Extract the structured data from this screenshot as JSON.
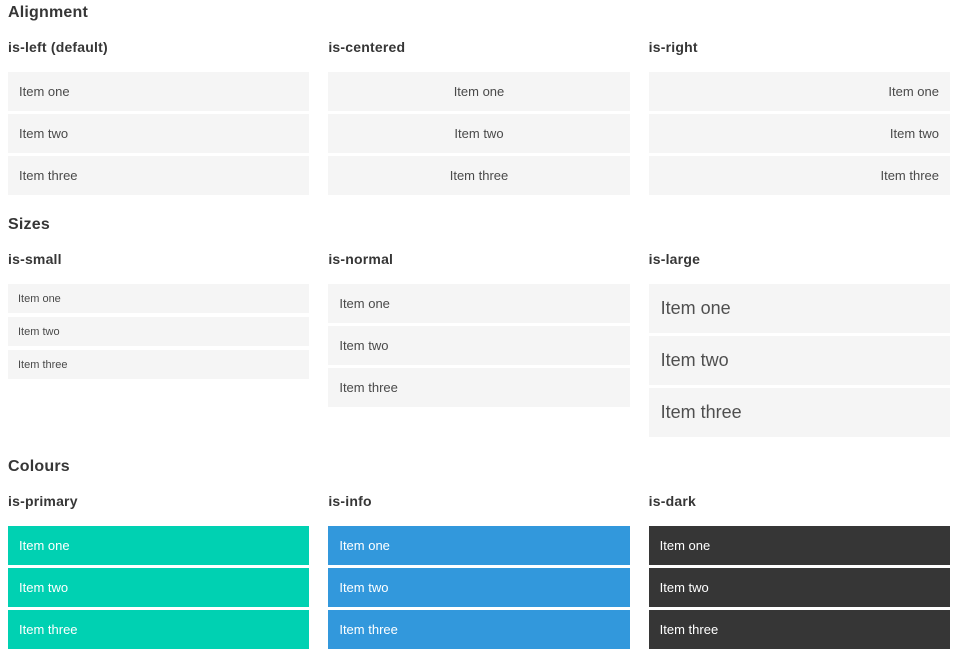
{
  "colors": {
    "primary": "#00d1b2",
    "info": "#3298dc",
    "dark": "#363636",
    "item_background": "#f5f5f5",
    "item_text": "#4a4a4a",
    "heading_text": "#363636",
    "colored_item_text": "#ffffff"
  },
  "sections": [
    {
      "title": "Alignment",
      "columns": [
        {
          "heading": "is-left (default)",
          "variant": "is-left",
          "items": [
            "Item one",
            "Item two",
            "Item three"
          ]
        },
        {
          "heading": "is-centered",
          "variant": "is-centered",
          "items": [
            "Item one",
            "Item two",
            "Item three"
          ]
        },
        {
          "heading": "is-right",
          "variant": "is-right",
          "items": [
            "Item one",
            "Item two",
            "Item three"
          ]
        }
      ]
    },
    {
      "title": "Sizes",
      "columns": [
        {
          "heading": "is-small",
          "variant": "is-small",
          "items": [
            "Item one",
            "Item two",
            "Item three"
          ]
        },
        {
          "heading": "is-normal",
          "variant": "is-normal",
          "items": [
            "Item one",
            "Item two",
            "Item three"
          ]
        },
        {
          "heading": "is-large",
          "variant": "is-large",
          "items": [
            "Item one",
            "Item two",
            "Item three"
          ]
        }
      ]
    },
    {
      "title": "Colours",
      "columns": [
        {
          "heading": "is-primary",
          "variant": "is-primary",
          "items": [
            "Item one",
            "Item two",
            "Item three"
          ]
        },
        {
          "heading": "is-info",
          "variant": "is-info",
          "items": [
            "Item one",
            "Item two",
            "Item three"
          ]
        },
        {
          "heading": "is-dark",
          "variant": "is-dark",
          "items": [
            "Item one",
            "Item two",
            "Item three"
          ]
        }
      ]
    }
  ]
}
